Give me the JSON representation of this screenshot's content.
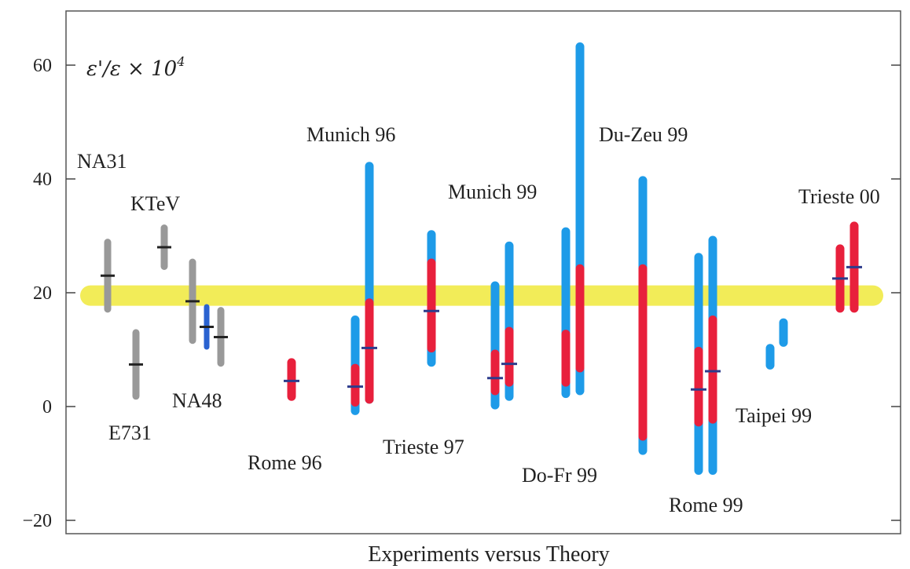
{
  "chart_data": {
    "type": "error-bar",
    "title": "",
    "ylabel": "ε'/ε × 10",
    "ylabel_sup": "4",
    "xlabel": "Experiments  versus Theory",
    "ylim": [
      -22,
      68
    ],
    "yticks": [
      -20,
      0,
      20,
      40,
      60
    ],
    "grid": false,
    "colors": {
      "experiment": "#999999",
      "na48": "#2a62d0",
      "blue_range": "#1e9be8",
      "red_range": "#e8203c",
      "band": "#f2ec58",
      "central": "#2d3b8c",
      "central_exp": "#222222"
    },
    "band": {
      "low": 17.7,
      "high": 21.3,
      "name": ""
    },
    "experiments": [
      {
        "label": "NA31",
        "value": 23.0,
        "low": 16.5,
        "high": 29.5,
        "color": "#999999"
      },
      {
        "label": "E731",
        "value": 7.4,
        "low": 1.2,
        "high": 13.6,
        "color": "#999999"
      },
      {
        "label": "KTeV",
        "value": 28.0,
        "low": 24.0,
        "high": 32.0,
        "color": "#999999"
      },
      {
        "label": "",
        "value": 18.5,
        "low": 11.0,
        "high": 26.0,
        "color": "#999999"
      },
      {
        "label": "NA48",
        "value": 14.0,
        "low": 10.0,
        "high": 18.0,
        "color": "#2a62d0"
      },
      {
        "label": "",
        "value": 12.2,
        "low": 7.0,
        "high": 17.5,
        "color": "#999999"
      }
    ],
    "theory": [
      {
        "label": "Rome 96",
        "bars": [
          {
            "central": 4.5,
            "red": [
              1.0,
              8.5
            ]
          }
        ]
      },
      {
        "label": "Munich 96",
        "bars": [
          {
            "central": 3.5,
            "blue": [
              -1.5,
              16.0
            ],
            "red": [
              0.0,
              7.5
            ]
          },
          {
            "central": 10.3,
            "blue": [
              0.5,
              43.0
            ],
            "red": [
              0.5,
              19.0
            ]
          }
        ]
      },
      {
        "label": "Trieste 97",
        "bars": [
          {
            "central": 16.8,
            "blue": [
              7.0,
              31.0
            ],
            "red": [
              9.5,
              26.0
            ]
          }
        ]
      },
      {
        "label": "Munich 99",
        "bars": [
          {
            "central": 5.0,
            "blue": [
              -0.5,
              22.0
            ],
            "red": [
              2.0,
              10.0
            ]
          },
          {
            "central": 7.5,
            "blue": [
              1.0,
              29.0
            ],
            "red": [
              3.5,
              14.0
            ]
          }
        ]
      },
      {
        "label": "Do-Fr 99",
        "bars": [
          {
            "central": null,
            "blue": [
              1.5,
              31.5
            ],
            "red": [
              3.5,
              13.5
            ]
          },
          {
            "central": null,
            "blue": [
              2.0,
              64.0
            ],
            "red": [
              6.0,
              25.0
            ]
          }
        ]
      },
      {
        "label": "Du-Zeu 99",
        "bars": [
          {
            "central": null,
            "blue": [
              -8.5,
              40.5
            ],
            "red": [
              -6.0,
              25.0
            ]
          }
        ]
      },
      {
        "label": "Rome 99",
        "bars": [
          {
            "central": 3.0,
            "blue": [
              -12.0,
              27.0
            ],
            "red": [
              -3.5,
              10.5
            ]
          },
          {
            "central": 6.2,
            "blue": [
              -12.0,
              30.0
            ],
            "red": [
              -3.0,
              16.0
            ]
          }
        ]
      },
      {
        "label": "Taipei 99",
        "bars": [
          {
            "central": null,
            "blue": [
              6.5,
              11.0
            ]
          },
          {
            "central": null,
            "blue": [
              10.5,
              15.5
            ]
          }
        ]
      },
      {
        "label": "Trieste 00",
        "bars": [
          {
            "central": 22.5,
            "red": [
              16.5,
              28.5
            ]
          },
          {
            "central": 24.5,
            "red": [
              16.5,
              32.5
            ]
          }
        ]
      }
    ]
  }
}
